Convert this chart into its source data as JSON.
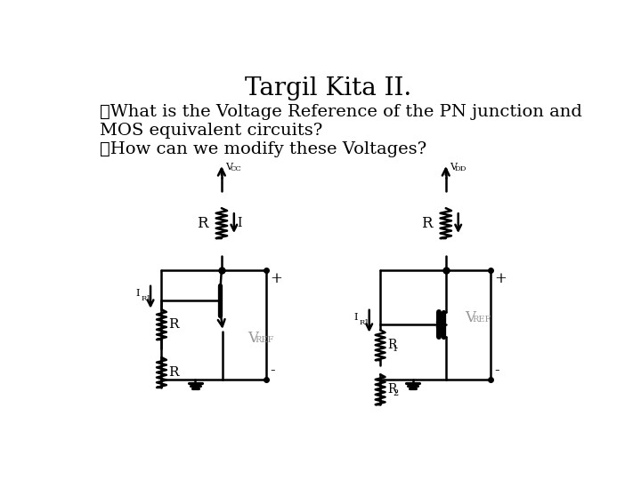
{
  "title": "Targil Kita II.",
  "title_fontsize": 20,
  "title_font": "serif",
  "bullet1_line1": "➤What is the Voltage Reference of the PN junction and",
  "bullet1_line2": "MOS equivalent circuits?",
  "bullet2": "➤How can we modify these Voltages?",
  "text_fontsize": 14,
  "text_font": "serif",
  "bg_color": "#ffffff",
  "text_color": "#000000",
  "circuit_color": "#000000",
  "vref_color": "#999999",
  "lw": 1.8
}
